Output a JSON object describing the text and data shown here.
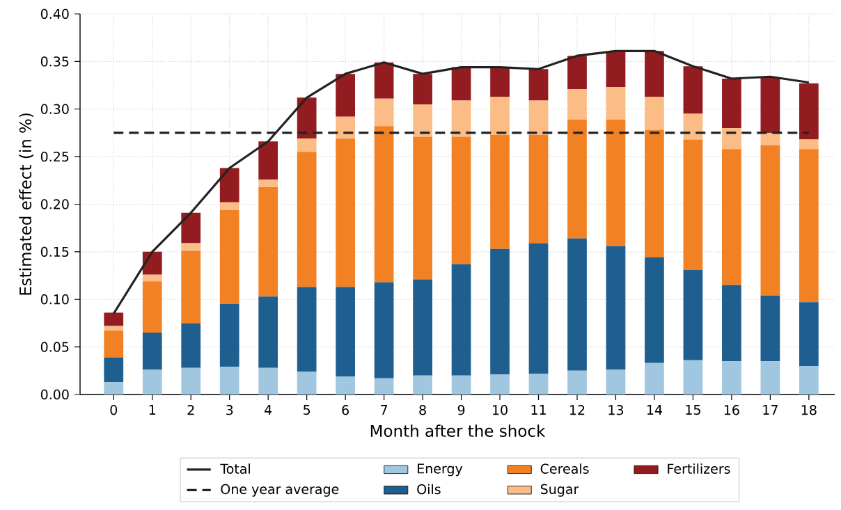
{
  "chart_data": {
    "type": "bar",
    "stacked": true,
    "xlabel": "Month after the shock",
    "ylabel": "Estimated effect (in %)",
    "categories": [
      "0",
      "1",
      "2",
      "3",
      "4",
      "5",
      "6",
      "7",
      "8",
      "9",
      "10",
      "11",
      "12",
      "13",
      "14",
      "15",
      "16",
      "17",
      "18"
    ],
    "series": [
      {
        "name": "Energy",
        "color": "#a1c6e0",
        "values": [
          0.013,
          0.026,
          0.028,
          0.029,
          0.028,
          0.024,
          0.019,
          0.017,
          0.02,
          0.02,
          0.021,
          0.022,
          0.025,
          0.026,
          0.033,
          0.036,
          0.035,
          0.035,
          0.03
        ]
      },
      {
        "name": "Oils",
        "color": "#1f5f8f",
        "values": [
          0.026,
          0.039,
          0.047,
          0.066,
          0.075,
          0.089,
          0.094,
          0.101,
          0.101,
          0.117,
          0.132,
          0.137,
          0.139,
          0.13,
          0.111,
          0.095,
          0.08,
          0.069,
          0.067
        ]
      },
      {
        "name": "Cereals",
        "color": "#f28124",
        "values": [
          0.028,
          0.054,
          0.076,
          0.099,
          0.115,
          0.142,
          0.156,
          0.164,
          0.15,
          0.134,
          0.12,
          0.114,
          0.125,
          0.133,
          0.134,
          0.137,
          0.143,
          0.158,
          0.161
        ]
      },
      {
        "name": "Sugar",
        "color": "#fbbc86",
        "values": [
          0.005,
          0.007,
          0.008,
          0.008,
          0.008,
          0.014,
          0.023,
          0.029,
          0.034,
          0.038,
          0.04,
          0.036,
          0.032,
          0.034,
          0.035,
          0.027,
          0.022,
          0.013,
          0.01
        ]
      },
      {
        "name": "Fertilizers",
        "color": "#931c20",
        "values": [
          0.014,
          0.024,
          0.032,
          0.036,
          0.04,
          0.043,
          0.045,
          0.038,
          0.032,
          0.035,
          0.031,
          0.033,
          0.035,
          0.037,
          0.048,
          0.05,
          0.052,
          0.058,
          0.059
        ]
      },
      {
        "name": "Total",
        "type": "line",
        "color": "#222222",
        "line_style": "solid",
        "values": [
          0.085,
          0.15,
          0.191,
          0.238,
          0.266,
          0.312,
          0.337,
          0.349,
          0.337,
          0.344,
          0.344,
          0.342,
          0.356,
          0.361,
          0.361,
          0.345,
          0.332,
          0.334,
          0.328
        ]
      }
    ],
    "ref_lines": [
      {
        "axis": "y",
        "value": 0.275,
        "label": "One year average",
        "color": "#222222",
        "line_style": "dashed"
      }
    ],
    "ylim": [
      0,
      0.4
    ],
    "yticks": [
      {
        "value": 0,
        "label": "0.00"
      },
      {
        "value": 0.05,
        "label": "0.05"
      },
      {
        "value": 0.1,
        "label": "0.10"
      },
      {
        "value": 0.15,
        "label": "0.15"
      },
      {
        "value": 0.2,
        "label": "0.20"
      },
      {
        "value": 0.25,
        "label": "0.25"
      },
      {
        "value": 0.3,
        "label": "0.30"
      },
      {
        "value": 0.35,
        "label": "0.35"
      },
      {
        "value": 0.4,
        "label": "0.40"
      }
    ],
    "grid": true,
    "legend": "bottom"
  }
}
